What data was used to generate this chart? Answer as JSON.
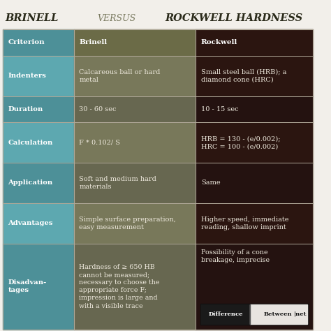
{
  "title_left": "BRINELL",
  "title_vs": "VERSUS",
  "title_right": "ROCKWELL HARDNESS",
  "bg_color": "#f2efea",
  "col_colors": {
    "left_header": "#4d9098",
    "mid_header": "#6b6b47",
    "right_header": "#2b1510",
    "left_odd": "#5da8b0",
    "left_even": "#4d9098",
    "mid_odd": "#78785a",
    "mid_even": "#676750",
    "right_odd": "#2b1510",
    "right_even": "#241210"
  },
  "text_white": "#ffffff",
  "text_light": "#ede8dc",
  "title_color": "#2a2a1a",
  "title_vs_color": "#7a7a60",
  "sep_color": "#b0a898",
  "wm_bg": "#d0ccc4",
  "wm_dark": "#1a1a1a",
  "wm_gold": "#c8a020",
  "rows": [
    {
      "criterion": "Indenters",
      "brinell": "Calcareous ball or hard\nmetal",
      "rockwell": "Small steel ball (HRB); a\ndiamond cone (HRC)"
    },
    {
      "criterion": "Duration",
      "brinell": "30 - 60 sec",
      "rockwell": "10 - 15 sec"
    },
    {
      "criterion": "Calculation",
      "brinell": "F * 0.102/ S",
      "rockwell": "HRB = 130 - (e/0.002);\nHRC = 100 - (e/0.002)"
    },
    {
      "criterion": "Application",
      "brinell": "Soft and medium hard\nmaterials",
      "rockwell": "Same"
    },
    {
      "criterion": "Advantages",
      "brinell": "Simple surface preparation,\neasy measurement",
      "rockwell": "Higher speed, immediate\nreading, shallow imprint"
    },
    {
      "criterion": "Disadvan-\ntages",
      "brinell": "Hardness of ≥ 650 HB\ncannot be measured;\nnecessary to choose the\nappropriate force F;\nimpression is large and\nwith a visible trace",
      "rockwell": "Possibility of a cone\nbreakage, imprecise"
    }
  ]
}
